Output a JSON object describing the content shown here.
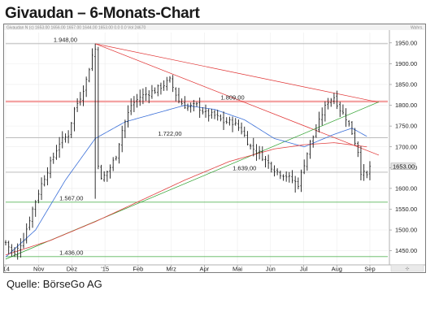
{
  "title": "Givaudan – 6-Monats-Chart",
  "source": "Quelle: BörseGo AG",
  "header_strip_text": "Givaudan N (c) 1653.00 1656.00 1657.00 1644.00 1653.00 0.0 0.0 Vol 24670",
  "header_strip_right_text": "Wahrs.",
  "chart_data": {
    "type": "candlestick",
    "x_tick_labels": [
      "'14",
      "Nov",
      "Dez",
      "'15",
      "Feb",
      "Mrz",
      "Apr",
      "Mai",
      "Jun",
      "Jul",
      "Aug",
      "Sep"
    ],
    "y_ticks": [
      1450,
      1500,
      1550,
      1600,
      1650,
      1700,
      1750,
      1800,
      1850,
      1900,
      1950
    ],
    "ylim": [
      1420,
      1975
    ],
    "last_price": 1653,
    "level_labels": [
      {
        "label": "1.948,00",
        "value": 1948
      },
      {
        "label": "1.809,00",
        "value": 1809
      },
      {
        "label": "1.722,00",
        "value": 1722
      },
      {
        "label": "1.639,00",
        "value": 1639
      },
      {
        "label": "1.567,00",
        "value": 1567
      },
      {
        "label": "1.436,00",
        "value": 1436
      }
    ],
    "horizontal_lines": [
      {
        "value": 1948,
        "color": "#b3b3b3"
      },
      {
        "value": 1809,
        "color": "#f4a3a3"
      },
      {
        "value": 1722,
        "color": "#b3b3b3"
      },
      {
        "value": 1639,
        "color": "#b3b3b3"
      },
      {
        "value": 1567,
        "color": "#5cb85c"
      },
      {
        "value": 1436,
        "color": "#5cb85c"
      }
    ],
    "trend_lines": [
      {
        "color": "#e03030",
        "from": {
          "day": 30,
          "value": 1948
        },
        "to": {
          "day": 125,
          "value": 1807
        }
      },
      {
        "color": "#e03030",
        "from": {
          "day": 30,
          "value": 1948
        },
        "to": {
          "day": 125,
          "value": 1680
        }
      },
      {
        "color": "#2ca02c",
        "from": {
          "day": 0,
          "value": 1430
        },
        "to": {
          "day": 125,
          "value": 1808
        }
      }
    ],
    "price_series": {
      "anchors": [
        [
          0,
          1470
        ],
        [
          3,
          1440
        ],
        [
          6,
          1480
        ],
        [
          9,
          1550
        ],
        [
          12,
          1610
        ],
        [
          15,
          1660
        ],
        [
          18,
          1710
        ],
        [
          21,
          1730
        ],
        [
          23,
          1790
        ],
        [
          25,
          1820
        ],
        [
          27,
          1860
        ],
        [
          29,
          1920
        ],
        [
          30,
          1935
        ],
        [
          31,
          1660
        ],
        [
          32,
          1620
        ],
        [
          33,
          1630
        ],
        [
          35,
          1650
        ],
        [
          37,
          1680
        ],
        [
          39,
          1740
        ],
        [
          42,
          1800
        ],
        [
          45,
          1820
        ],
        [
          48,
          1830
        ],
        [
          50,
          1835
        ],
        [
          53,
          1850
        ],
        [
          55,
          1860
        ],
        [
          58,
          1810
        ],
        [
          61,
          1795
        ],
        [
          64,
          1800
        ],
        [
          67,
          1780
        ],
        [
          70,
          1775
        ],
        [
          73,
          1760
        ],
        [
          76,
          1760
        ],
        [
          79,
          1740
        ],
        [
          82,
          1700
        ],
        [
          85,
          1685
        ],
        [
          88,
          1660
        ],
        [
          91,
          1640
        ],
        [
          94,
          1630
        ],
        [
          96,
          1620
        ],
        [
          98,
          1610
        ],
        [
          100,
          1660
        ],
        [
          102,
          1710
        ],
        [
          104,
          1740
        ],
        [
          106,
          1780
        ],
        [
          108,
          1810
        ],
        [
          110,
          1820
        ],
        [
          112,
          1790
        ],
        [
          114,
          1770
        ],
        [
          116,
          1735
        ],
        [
          118,
          1690
        ],
        [
          119,
          1640
        ],
        [
          121,
          1630
        ],
        [
          122,
          1653
        ]
      ],
      "wick_points": [
        {
          "day": 30,
          "low": 1575,
          "high": 1948
        },
        {
          "day": 97,
          "low": 1590,
          "high": 1630
        }
      ]
    },
    "moving_averages": [
      {
        "color": "#3a6fd8",
        "anchors": [
          [
            0,
            1435
          ],
          [
            10,
            1500
          ],
          [
            20,
            1620
          ],
          [
            30,
            1720
          ],
          [
            40,
            1760
          ],
          [
            50,
            1780
          ],
          [
            60,
            1800
          ],
          [
            70,
            1790
          ],
          [
            80,
            1765
          ],
          [
            90,
            1720
          ],
          [
            100,
            1700
          ],
          [
            110,
            1730
          ],
          [
            116,
            1745
          ],
          [
            121,
            1725
          ]
        ]
      },
      {
        "color": "#e04040",
        "anchors": [
          [
            0,
            1440
          ],
          [
            15,
            1475
          ],
          [
            30,
            1520
          ],
          [
            45,
            1570
          ],
          [
            60,
            1620
          ],
          [
            75,
            1665
          ],
          [
            90,
            1695
          ],
          [
            100,
            1705
          ],
          [
            110,
            1710
          ],
          [
            121,
            1700
          ]
        ]
      }
    ]
  }
}
